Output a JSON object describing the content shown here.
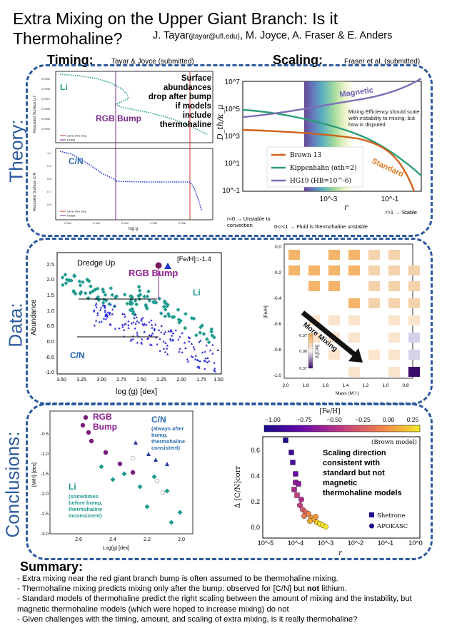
{
  "title": "Extra Mixing on the Upper Giant Branch: Is it Thermohaline?",
  "authors": {
    "first": "J. Tayar",
    "email": "(jtayar@ufl.edu)",
    "rest": ", M. Joyce, A. Fraser & E. Anders"
  },
  "timing": {
    "heading": "Timing:",
    "citation": "Tayar & Joyce (submitted)"
  },
  "scaling": {
    "heading": "Scaling:",
    "citation": "Fraser et al. (submitted)"
  },
  "rows": {
    "theory": "Theory:",
    "data": "Data:",
    "conclusions": "Conclusions:"
  },
  "theory_timing": {
    "top_label": "Li",
    "top_ylabel": "Rescaled Surface Li7",
    "bump_label": "RGB Bump",
    "annotation": [
      "Surface",
      "abundances",
      "drop after bump",
      "if models",
      "include",
      "thermohaline"
    ],
    "legend_a": "same time step",
    "legend_b": "RGBB",
    "bottom_label": "C/N",
    "bottom_ylabel": "Rescaled Surface C/N",
    "xlabel": "log g"
  },
  "theory_scaling": {
    "ylabel": "D_th/κ_μ",
    "xlabel": "r",
    "yticks": [
      "10^7",
      "10^5",
      "10^3",
      "10^1",
      "10^-1"
    ],
    "xticks": [
      "10^-3",
      "10^-1"
    ],
    "magnetic_label": "Magnetic",
    "standard_label": "Standard",
    "note": "Mixing Efficiency should scale with instability to mixing, but how is disputed",
    "legend": [
      "Brown 13",
      "Kippenhahn (αth=2)",
      "HG19 (HB=10^-6)"
    ],
    "colors": {
      "brown": "#d2601a",
      "kippenhahn": "#2a9d76",
      "hg19": "#7e6bb5"
    },
    "r_lt0": "r<0 → Unstable to convection",
    "r_mid": "0<r<1 → Fluid is thermohaline unstable",
    "r_gt1": "r>1 → Stable"
  },
  "data_left": {
    "dredge_label": "Dredge Up",
    "feh_label": "[Fe/H]=-1.4",
    "bump_label": "RGB Bump",
    "li_label": "Li",
    "cn_label": "C/N",
    "ylabel": "Abundance",
    "xlabel": "log (g) [dex]",
    "yticks": [
      "2.5",
      "2.0",
      "1.5",
      "1.0",
      "0.5",
      "0.0",
      "-0.5",
      "-1.0"
    ],
    "xticks": [
      "3.50",
      "3.25",
      "3.00",
      "2.75",
      "2.50",
      "2.25",
      "2.00",
      "1.75",
      "1.50"
    ]
  },
  "data_right": {
    "ylabel": "[Fe/H]",
    "xlabel": "Mass (M☉)",
    "arrow_label": "More Mixing",
    "cbar_label": "Δ [C/N]",
    "cbar_ticks": [
      "-0.37",
      "0.00",
      "0.37"
    ],
    "yticks": [
      "0.0",
      "-0.2",
      "-0.4",
      "-0.6",
      "-0.8",
      "-1.0"
    ],
    "xticks": [
      "2.0",
      "1.8",
      "1.6",
      "1.4",
      "1.2",
      "1.0",
      "0.8"
    ]
  },
  "concl_left": {
    "bump_label": [
      "RGB",
      "Bump"
    ],
    "cn_label": "C/N",
    "cn_note": [
      "(always after",
      "bump,",
      "thermohaline",
      "consistent)"
    ],
    "li_label": "Li",
    "li_note": [
      "(sometimes",
      "before bump,",
      "thermohaline",
      "inconsistent)"
    ],
    "ylabel": "[M/H] [dex]",
    "xlabel": "Log(g) [dex]",
    "yticks": [
      "-0.5",
      "-1.0",
      "-1.5",
      "-2.0",
      "-2.5",
      "-3.0"
    ],
    "xticks": [
      "2.6",
      "2.4",
      "2.2",
      "2.0"
    ]
  },
  "concl_right": {
    "cbar_title": "[Fe/H]",
    "cbar_ticks": [
      "−1.00",
      "−0.75",
      "−0.50",
      "−0.25",
      "0.00",
      "0.25"
    ],
    "model_label": "(Brown model)",
    "message": [
      "Scaling direction",
      "consistent with",
      "standard but not",
      "magnetic",
      "thermohaline models"
    ],
    "ylabel": "Δ [C/N]corr",
    "xlabel": "r",
    "yticks": [
      "0.6",
      "0.4",
      "0.2",
      "0.0"
    ],
    "xticks": [
      "10^-5",
      "10^-4",
      "10^-3",
      "10^-2",
      "10^-1",
      "10^0"
    ],
    "legend": [
      "Shetrone",
      "APOKASC"
    ]
  },
  "summary": {
    "heading": "Summary:",
    "lines": [
      "- Extra mixing near the red giant branch bump is often assumed to be thermohaline mixing.",
      "- Thermohaline mixing predicts mixing only after the bump: observed for [C/N] but not lithium.",
      "- Standard models of thermohaline predict the right scaling between the amount of mixing and the instability, but magnetic thermohaline models (which were hoped to increase mixing) do not",
      "- Given challenges with the timing, amount, and scaling of extra mixing, is it really thermohaline?"
    ],
    "bold_word": "not"
  }
}
